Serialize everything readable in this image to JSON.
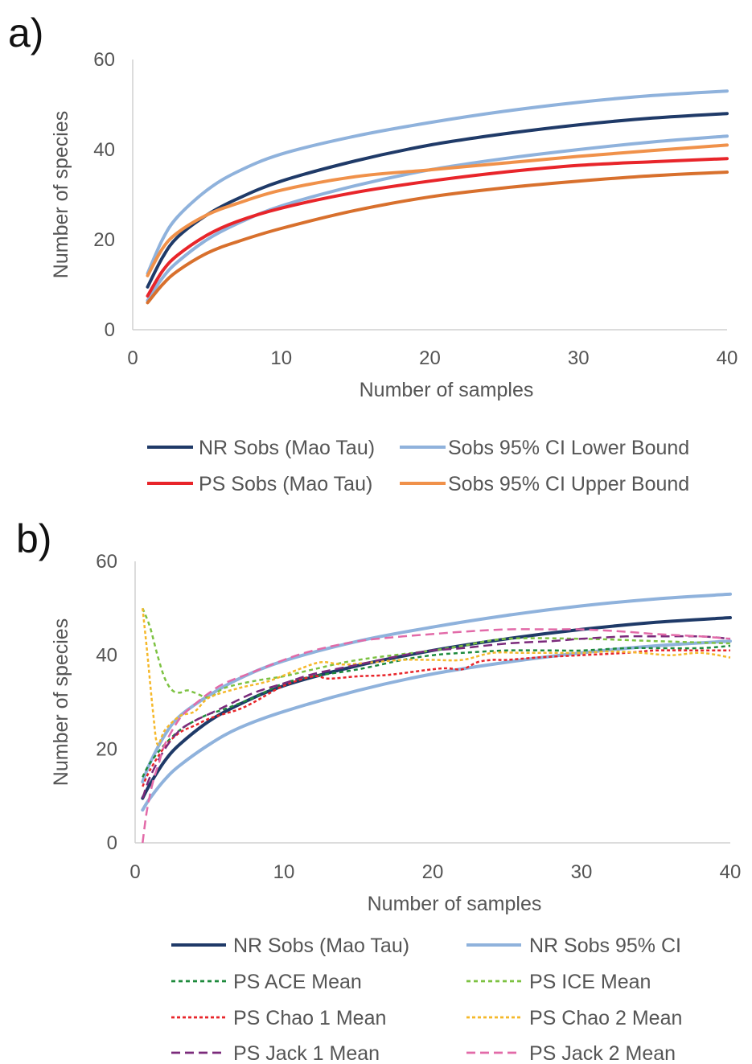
{
  "chart_data": [
    {
      "panel": "a)",
      "type": "line",
      "xlabel": "Number of samples",
      "ylabel": "Number of species",
      "xlim": [
        0,
        40
      ],
      "ylim": [
        0,
        60
      ],
      "xticks": [
        0,
        10,
        20,
        30,
        40
      ],
      "yticks": [
        0,
        20,
        40,
        60
      ],
      "grid": false,
      "legend": "bottom",
      "series": [
        {
          "name": "NR Sobs (Mao Tau)",
          "color": "#1f3a68",
          "dash": "solid",
          "x": [
            1,
            2,
            3,
            5,
            7,
            10,
            15,
            20,
            25,
            30,
            35,
            40
          ],
          "y": [
            9.5,
            16,
            20.5,
            25.5,
            29,
            33,
            37.5,
            41,
            43.5,
            45.5,
            47,
            48
          ]
        },
        {
          "name": "Sobs 95% CI Lower Bound",
          "color": "#8fb2dc",
          "dash": "solid",
          "x": [
            1,
            2,
            3,
            5,
            7,
            10,
            15,
            20,
            25,
            30,
            35,
            40
          ],
          "y": [
            12.5,
            20,
            25,
            31,
            35,
            39,
            43,
            46,
            48.5,
            50.5,
            52,
            53
          ]
        },
        {
          "name": "",
          "color": "#8fb2dc",
          "dash": "solid",
          "x": [
            1,
            2,
            3,
            5,
            7,
            10,
            15,
            20,
            25,
            30,
            35,
            40
          ],
          "y": [
            6.5,
            11.5,
            15,
            20,
            23.5,
            27.5,
            32,
            35.5,
            38,
            40,
            41.7,
            43
          ]
        },
        {
          "name": "PS Sobs (Mao Tau)",
          "color": "#e8252a",
          "dash": "solid",
          "x": [
            1,
            2,
            3,
            5,
            7,
            10,
            15,
            20,
            25,
            30,
            35,
            40
          ],
          "y": [
            7.5,
            13,
            16.5,
            21,
            24,
            27,
            30.5,
            33,
            35,
            36.5,
            37.3,
            38
          ]
        },
        {
          "name": "Sobs 95% CI Upper Bound",
          "color": "#f0914a",
          "dash": "solid",
          "x": [
            1,
            2,
            3,
            5,
            7,
            10,
            15,
            20,
            25,
            30,
            35,
            40
          ],
          "y": [
            12,
            18,
            21.5,
            25.5,
            28,
            31,
            34,
            35.5,
            37,
            38.5,
            39.8,
            41
          ]
        },
        {
          "name": "",
          "color": "#d8702d",
          "dash": "solid",
          "x": [
            1,
            2,
            3,
            5,
            7,
            10,
            15,
            20,
            25,
            30,
            35,
            40
          ],
          "y": [
            6,
            10,
            13,
            17,
            19.5,
            22.5,
            26.5,
            29.5,
            31.5,
            33,
            34.2,
            35
          ]
        }
      ]
    },
    {
      "panel": "b)",
      "type": "line",
      "xlabel": "Number of samples",
      "ylabel": "Number of species",
      "xlim": [
        0,
        40
      ],
      "ylim": [
        0,
        60
      ],
      "xticks": [
        0,
        10,
        20,
        30,
        40
      ],
      "yticks": [
        0,
        20,
        40,
        60
      ],
      "grid": false,
      "legend": "bottom",
      "series": [
        {
          "name": "NR Sobs (Mao Tau)",
          "color": "#1f3a68",
          "dash": "solid",
          "x": [
            0.5,
            1,
            2,
            3,
            5,
            7,
            10,
            15,
            20,
            25,
            30,
            35,
            40
          ],
          "y": [
            9.5,
            12.5,
            17.5,
            21,
            26,
            29.5,
            33.5,
            37.8,
            41,
            43.5,
            45.5,
            47,
            48
          ]
        },
        {
          "name": "NR Sobs 95% CI",
          "color": "#8fb2dc",
          "dash": "solid",
          "x": [
            0.5,
            1,
            2,
            3,
            5,
            7,
            10,
            15,
            20,
            25,
            30,
            35,
            40
          ],
          "y": [
            13,
            17,
            23,
            27,
            31.5,
            35,
            38.8,
            43,
            46,
            48.5,
            50.5,
            52,
            53
          ]
        },
        {
          "name": "",
          "color": "#8fb2dc",
          "dash": "solid",
          "x": [
            0.5,
            1,
            2,
            3,
            5,
            7,
            10,
            15,
            20,
            25,
            30,
            35,
            40
          ],
          "y": [
            7,
            9.5,
            13.5,
            16.5,
            21,
            24.5,
            28,
            32.5,
            36,
            38.5,
            40.5,
            42,
            43
          ]
        },
        {
          "name": "PS ACE Mean",
          "color": "#1e8a3c",
          "dash": "5,4",
          "x": [
            0.5,
            1,
            2,
            3,
            4,
            5,
            6,
            8,
            10,
            12,
            15,
            18,
            20,
            22,
            25,
            28,
            30,
            33,
            35,
            38,
            40
          ],
          "y": [
            14,
            17,
            21,
            24,
            26,
            27.5,
            28.5,
            31,
            34,
            35.5,
            37,
            39,
            40,
            40.5,
            41,
            41,
            41,
            41.5,
            41.5,
            41.5,
            42
          ]
        },
        {
          "name": "PS ICE Mean",
          "color": "#7dc242",
          "dash": "5,4",
          "x": [
            0.5,
            1,
            1.5,
            2,
            2.5,
            3,
            3.5,
            4,
            5,
            6,
            8,
            10,
            12,
            15,
            20,
            22,
            25,
            30,
            35,
            40
          ],
          "y": [
            50,
            46,
            40,
            35,
            32.5,
            32,
            32.5,
            32,
            31,
            33,
            34.5,
            35.5,
            37,
            39,
            41,
            42,
            43.5,
            43.5,
            43,
            42.5
          ]
        },
        {
          "name": "PS Chao 1 Mean",
          "color": "#e8252a",
          "dash": "4,3",
          "x": [
            0.5,
            1,
            2,
            3,
            4,
            5,
            6,
            7,
            8,
            10,
            12,
            13,
            15,
            17,
            20,
            21,
            22,
            23,
            24,
            25,
            27,
            30,
            33,
            35,
            38,
            40
          ],
          "y": [
            12,
            15.5,
            20.5,
            23.5,
            25,
            26.5,
            27.5,
            28.5,
            30,
            33.5,
            35.5,
            35,
            35.5,
            35.8,
            37,
            37.2,
            37,
            38.5,
            39,
            39,
            39.5,
            40,
            40.5,
            41,
            41,
            41
          ]
        },
        {
          "name": "PS Chao 2 Mean",
          "color": "#f5b82a",
          "dash": "4,3",
          "x": [
            0.5,
            0.8,
            1.2,
            1.5,
            2,
            3,
            4,
            5,
            7,
            9,
            11,
            12.5,
            14,
            16,
            18,
            20,
            22,
            24,
            26,
            28,
            30,
            32,
            34,
            36,
            38,
            40
          ],
          "y": [
            50,
            41,
            28,
            21,
            24,
            27,
            28,
            31,
            33,
            34.5,
            37,
            38.5,
            38,
            38.5,
            39,
            39,
            39,
            40.5,
            40.5,
            40.5,
            40.5,
            40.8,
            40.5,
            40,
            40.5,
            39.5
          ]
        },
        {
          "name": "PS Jack 1 Mean",
          "color": "#7b2a7b",
          "dash": "11,6",
          "x": [
            0.5,
            1,
            2,
            3,
            4,
            5,
            6,
            8,
            10,
            12,
            15,
            18,
            20,
            22,
            25,
            28,
            30,
            33,
            35,
            38,
            40
          ],
          "y": [
            9.5,
            14,
            20,
            24,
            26,
            27.5,
            29,
            32,
            34,
            36,
            38,
            40,
            41,
            41.5,
            42.5,
            43,
            43.5,
            44,
            44,
            44,
            43.5
          ]
        },
        {
          "name": "PS Jack 2 Mean",
          "color": "#e26aa8",
          "dash": "11,6",
          "x": [
            0.5,
            0.8,
            1.2,
            1.6,
            2,
            3,
            4,
            5,
            6,
            8,
            10,
            12,
            15,
            18,
            20,
            22,
            25,
            28,
            30,
            33,
            35,
            38,
            40
          ],
          "y": [
            0,
            7,
            13,
            17,
            21,
            26.5,
            29.5,
            32,
            34,
            36.5,
            39,
            41,
            43,
            44,
            44.5,
            45,
            45.5,
            45.5,
            45.5,
            45,
            44.5,
            44,
            43.5
          ]
        }
      ]
    }
  ]
}
